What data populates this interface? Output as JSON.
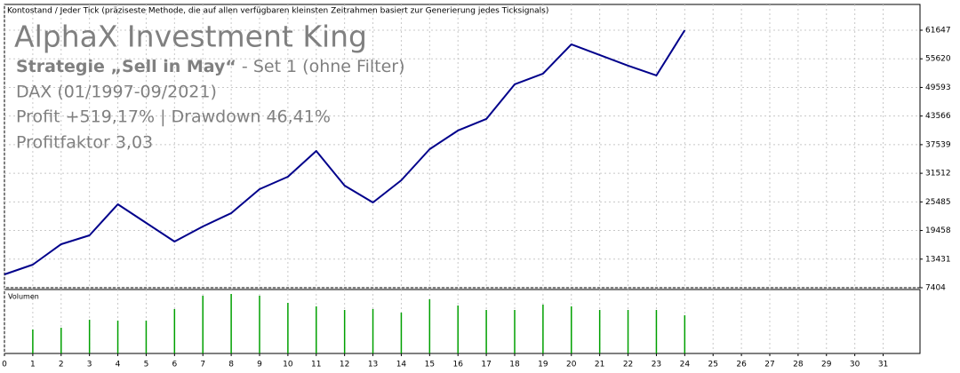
{
  "chart_data": [
    {
      "type": "line",
      "caption": "Kontostand / Jeder Tick (präziseste Methode, die auf allen verfügbaren kleinsten Zeitrahmen basiert zur Generierung jedes Ticksignals)",
      "title": "AlphaX Investment King",
      "subtitle_bold": "Strategie „Sell in May“",
      "subtitle": "- Set 1 (ohne Filter)",
      "annotations": [
        "DAX (01/1997-09/2021)",
        "Profit +519,17% | Drawdown 46,41%",
        "Profitfaktor 3,03"
      ],
      "x": [
        0,
        1,
        2,
        3,
        4,
        5,
        6,
        7,
        8,
        9,
        10,
        11,
        12,
        13,
        14,
        15,
        16,
        17,
        18,
        19,
        20,
        21,
        22,
        23,
        24
      ],
      "series": [
        {
          "name": null,
          "color": "#00008b",
          "values": [
            10210,
            12267,
            16570,
            18440,
            24987,
            21060,
            17131,
            20311,
            23117,
            28167,
            30786,
            36211,
            28916,
            25362,
            30038,
            36585,
            40513,
            42945,
            50240,
            52485,
            58658,
            56413,
            54168,
            52111,
            61651
          ]
        }
      ],
      "xlim": [
        0,
        32.3
      ],
      "xticks": [
        0,
        1,
        2,
        3,
        4,
        5,
        6,
        7,
        8,
        9,
        10,
        11,
        12,
        13,
        14,
        15,
        16,
        17,
        18,
        19,
        20,
        21,
        22,
        23,
        24,
        25,
        26,
        27,
        28,
        29,
        30,
        31
      ],
      "ylim": [
        7404,
        67071
      ],
      "yticks": [
        7404,
        13431,
        19458,
        25485,
        31512,
        37539,
        43566,
        49593,
        55620,
        61647
      ],
      "grid": true
    },
    {
      "type": "bar",
      "title": "Volumen",
      "x": [
        1,
        2,
        3,
        4,
        5,
        6,
        7,
        8,
        9,
        10,
        11,
        12,
        13,
        14,
        15,
        16,
        17,
        18,
        19,
        20,
        21,
        22,
        23,
        24
      ],
      "values": [
        27,
        29,
        38,
        37,
        37,
        50,
        65,
        67,
        65,
        57,
        53,
        49,
        50,
        46,
        61,
        54,
        49,
        49,
        55,
        53,
        49,
        49,
        49,
        43
      ],
      "color": "#00a000",
      "ylim": [
        0,
        72
      ]
    }
  ]
}
